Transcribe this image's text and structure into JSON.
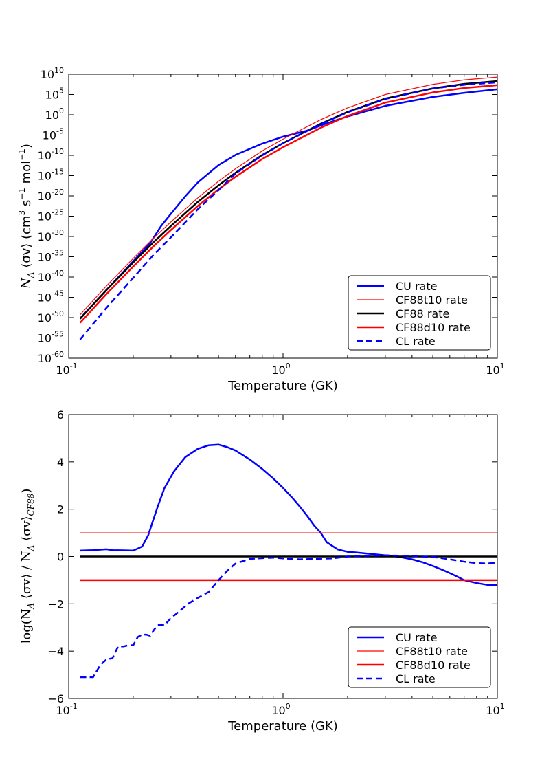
{
  "colors": {
    "blue": "#0000ff",
    "red": "#ff0000",
    "black": "#000000"
  },
  "chart_data": [
    {
      "type": "line",
      "id": "top",
      "xscale": "log",
      "yscale": "log",
      "xlabel": "Temperature (GK)",
      "ylabel": {
        "prefix": "N",
        "sub": "A",
        "mid": " ⟨σv⟩ (cm",
        "sup1": "3",
        "mid2": " s",
        "sup2": "−1",
        "mid3": " mol",
        "sup3": "−1",
        "suffix": ")"
      },
      "xlim": [
        0.1,
        10
      ],
      "ylim_exp": [
        -60,
        10
      ],
      "xticks": [
        {
          "base": "10",
          "exp": "-1",
          "value": 0.1
        },
        {
          "base": "10",
          "exp": "0",
          "value": 1
        },
        {
          "base": "10",
          "exp": "1",
          "value": 10
        }
      ],
      "yticks": [
        {
          "base": "10",
          "exp": "10",
          "value": 10
        },
        {
          "base": "10",
          "exp": "5",
          "value": 5
        },
        {
          "base": "10",
          "exp": "0",
          "value": 0
        },
        {
          "base": "10",
          "exp": "-5",
          "value": -5
        },
        {
          "base": "10",
          "exp": "-10",
          "value": -10
        },
        {
          "base": "10",
          "exp": "-15",
          "value": -15
        },
        {
          "base": "10",
          "exp": "-20",
          "value": -20
        },
        {
          "base": "10",
          "exp": "-25",
          "value": -25
        },
        {
          "base": "10",
          "exp": "-30",
          "value": -30
        },
        {
          "base": "10",
          "exp": "-35",
          "value": -35
        },
        {
          "base": "10",
          "exp": "-40",
          "value": -40
        },
        {
          "base": "10",
          "exp": "-45",
          "value": -45
        },
        {
          "base": "10",
          "exp": "-50",
          "value": -50
        },
        {
          "base": "10",
          "exp": "-55",
          "value": -55
        },
        {
          "base": "10",
          "exp": "-60",
          "value": -60
        }
      ],
      "legend_position": "lower-right",
      "legend_series": [
        "cu",
        "cf88t10",
        "cf88",
        "cf88d10",
        "cl"
      ],
      "series": [
        {
          "id": "cu",
          "name": "CU rate",
          "color": "#0000ff",
          "width": 2.5,
          "dash": "solid",
          "x": [
            0.113,
            0.15,
            0.2,
            0.24,
            0.27,
            0.3,
            0.35,
            0.4,
            0.5,
            0.6,
            0.8,
            1.0,
            1.3,
            1.6,
            2,
            3,
            5,
            7,
            10
          ],
          "log10_y": [
            -50.2,
            -43.2,
            -36.1,
            -31.6,
            -27.4,
            -24.4,
            -20.1,
            -16.7,
            -12.4,
            -9.9,
            -7.1,
            -5.4,
            -3.9,
            -2.1,
            -0.4,
            2.2,
            4.4,
            5.4,
            6.3
          ]
        },
        {
          "id": "cf88t10",
          "name": "CF88t10 rate",
          "color": "#ff0000",
          "width": 1.2,
          "dash": "solid",
          "x": [
            0.113,
            0.15,
            0.2,
            0.25,
            0.3,
            0.4,
            0.5,
            0.6,
            0.8,
            1.0,
            1.5,
            2,
            3,
            5,
            7,
            10
          ],
          "log10_y": [
            -49.3,
            -42.2,
            -35.4,
            -30.3,
            -26.4,
            -20.5,
            -16.4,
            -13.3,
            -8.9,
            -6.0,
            -1.2,
            1.7,
            5.0,
            7.5,
            8.6,
            9.3
          ]
        },
        {
          "id": "cf88",
          "name": "CF88 rate",
          "color": "#000000",
          "width": 2.5,
          "dash": "solid",
          "x": [
            0.113,
            0.15,
            0.2,
            0.25,
            0.3,
            0.4,
            0.5,
            0.6,
            0.8,
            1.0,
            1.5,
            2,
            3,
            5,
            7,
            10
          ],
          "log10_y": [
            -50.3,
            -43.2,
            -36.4,
            -31.3,
            -27.4,
            -21.5,
            -17.4,
            -14.3,
            -9.9,
            -7.0,
            -2.2,
            0.7,
            4.0,
            6.5,
            7.6,
            8.3
          ]
        },
        {
          "id": "cf88d10",
          "name": "CF88d10 rate",
          "color": "#ff0000",
          "width": 2.5,
          "dash": "solid",
          "x": [
            0.113,
            0.15,
            0.2,
            0.25,
            0.3,
            0.4,
            0.5,
            0.6,
            0.8,
            1.0,
            1.5,
            2,
            3,
            5,
            7,
            10
          ],
          "log10_y": [
            -51.3,
            -44.2,
            -37.4,
            -32.3,
            -28.4,
            -22.5,
            -18.4,
            -15.3,
            -10.9,
            -8.0,
            -3.2,
            -0.3,
            3.0,
            5.5,
            6.6,
            7.3
          ]
        },
        {
          "id": "cl",
          "name": "CL rate",
          "color": "#0000ff",
          "width": 2.5,
          "dash": "dashed",
          "x": [
            0.113,
            0.15,
            0.2,
            0.25,
            0.3,
            0.4,
            0.5,
            0.6,
            0.8,
            1.0,
            1.5,
            2,
            3,
            5,
            7,
            10
          ],
          "log10_y": [
            -55.4,
            -47.6,
            -40.2,
            -34.4,
            -30.2,
            -23.3,
            -18.6,
            -14.5,
            -10.0,
            -7.0,
            -2.3,
            0.6,
            3.9,
            6.5,
            7.4,
            8.0
          ]
        }
      ]
    },
    {
      "type": "line",
      "id": "bottom",
      "xscale": "log",
      "yscale": "linear",
      "xlabel": "Temperature (GK)",
      "ylabel": {
        "text": "log(N",
        "sub1": "A",
        "mid": " ⟨σv⟩ / N",
        "sub2": "A",
        "mid2": " ⟨σv⟩",
        "sub3": "CF88",
        "suffix": ")"
      },
      "xlim": [
        0.1,
        10
      ],
      "ylim": [
        -6,
        6
      ],
      "xticks": [
        {
          "base": "10",
          "exp": "-1",
          "value": 0.1
        },
        {
          "base": "10",
          "exp": "0",
          "value": 1
        },
        {
          "base": "10",
          "exp": "1",
          "value": 10
        }
      ],
      "yticks": [
        {
          "label": "6",
          "value": 6
        },
        {
          "label": "4",
          "value": 4
        },
        {
          "label": "2",
          "value": 2
        },
        {
          "label": "0",
          "value": 0
        },
        {
          "label": "−2",
          "value": -2
        },
        {
          "label": "−4",
          "value": -4
        },
        {
          "label": "−6",
          "value": -6
        }
      ],
      "legend_position": "lower-right",
      "legend_series": [
        "cu",
        "cf88t10",
        "cf88d10",
        "cl"
      ],
      "series": [
        {
          "id": "cu",
          "name": "CU rate",
          "color": "#0000ff",
          "width": 2.5,
          "dash": "solid",
          "x": [
            0.113,
            0.13,
            0.15,
            0.16,
            0.18,
            0.2,
            0.22,
            0.235,
            0.245,
            0.26,
            0.28,
            0.31,
            0.35,
            0.4,
            0.45,
            0.5,
            0.55,
            0.6,
            0.7,
            0.8,
            0.9,
            1.0,
            1.1,
            1.2,
            1.3,
            1.4,
            1.5,
            1.6,
            1.8,
            2.0,
            2.2,
            2.5,
            3,
            3.5,
            4,
            4.5,
            5,
            5.5,
            6,
            6.5,
            7,
            8,
            9,
            10
          ],
          "y": [
            0.25,
            0.27,
            0.31,
            0.27,
            0.26,
            0.25,
            0.42,
            0.9,
            1.4,
            2.1,
            2.9,
            3.6,
            4.2,
            4.55,
            4.7,
            4.73,
            4.62,
            4.48,
            4.1,
            3.7,
            3.3,
            2.9,
            2.5,
            2.1,
            1.7,
            1.3,
            1.0,
            0.6,
            0.3,
            0.2,
            0.17,
            0.12,
            0.05,
            -0.02,
            -0.12,
            -0.25,
            -0.4,
            -0.55,
            -0.7,
            -0.85,
            -1.0,
            -1.12,
            -1.2,
            -1.2
          ]
        },
        {
          "id": "cf88t10",
          "name": "CF88t10 rate",
          "color": "#ff0000",
          "width": 1.2,
          "dash": "solid",
          "x": [
            0.113,
            10
          ],
          "y": [
            1,
            1
          ]
        },
        {
          "id": "cf88",
          "name": "CF88 rate",
          "color": "#000000",
          "width": 2.5,
          "dash": "solid",
          "x": [
            0.113,
            10
          ],
          "y": [
            0,
            0
          ]
        },
        {
          "id": "cf88d10",
          "name": "CF88d10 rate",
          "color": "#ff0000",
          "width": 2.5,
          "dash": "solid",
          "x": [
            0.113,
            10
          ],
          "y": [
            -1,
            -1
          ]
        },
        {
          "id": "cl",
          "name": "CL rate",
          "color": "#0000ff",
          "width": 2.5,
          "dash": "dashed",
          "x": [
            0.113,
            0.13,
            0.14,
            0.15,
            0.16,
            0.17,
            0.18,
            0.19,
            0.2,
            0.21,
            0.22,
            0.23,
            0.24,
            0.25,
            0.26,
            0.28,
            0.3,
            0.33,
            0.36,
            0.4,
            0.45,
            0.5,
            0.55,
            0.6,
            0.7,
            0.8,
            0.9,
            1.0,
            1.2,
            1.4,
            1.7,
            2.0,
            2.5,
            3,
            4,
            5,
            6,
            7,
            8,
            9,
            10
          ],
          "y": [
            -5.1,
            -5.1,
            -4.6,
            -4.35,
            -4.3,
            -3.8,
            -3.8,
            -3.75,
            -3.75,
            -3.4,
            -3.3,
            -3.3,
            -3.35,
            -3.1,
            -2.9,
            -2.9,
            -2.6,
            -2.3,
            -2.0,
            -1.75,
            -1.5,
            -1.0,
            -0.6,
            -0.3,
            -0.1,
            -0.07,
            -0.05,
            -0.08,
            -0.12,
            -0.1,
            -0.08,
            0.0,
            0.03,
            0.05,
            0.02,
            -0.02,
            -0.12,
            -0.22,
            -0.28,
            -0.3,
            -0.25
          ]
        }
      ]
    }
  ]
}
